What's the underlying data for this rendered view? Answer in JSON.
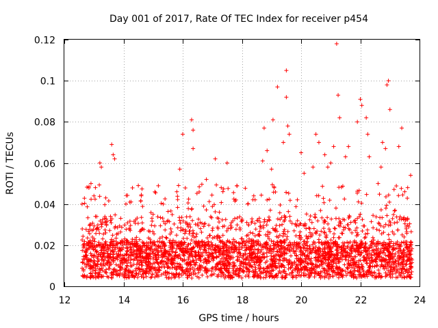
{
  "chart_data": {
    "type": "scatter",
    "title": "Day 001 of 2017, Rate Of TEC Index for receiver p454",
    "xlabel": "GPS time / hours",
    "ylabel": "ROTI / TECUs",
    "xlim": [
      12,
      24
    ],
    "ylim": [
      0,
      0.12
    ],
    "x_ticks": [
      12,
      14,
      16,
      18,
      20,
      22,
      24
    ],
    "x_tick_labels": [
      "12",
      "14",
      "16",
      "18",
      "20",
      "22",
      "24"
    ],
    "y_ticks": [
      0,
      0.02,
      0.04,
      0.06,
      0.08,
      0.1,
      0.12
    ],
    "y_tick_labels": [
      "0",
      "0.02",
      "0.04",
      "0.06",
      "0.08",
      "0.1",
      "0.12"
    ],
    "grid": true,
    "marker": "+",
    "color": "#ff0000",
    "series": [
      {
        "name": "ROTI",
        "x": [
          12.6,
          12.9,
          13.0,
          13.05,
          13.2,
          13.25,
          13.4,
          13.6,
          13.65,
          13.7,
          14.5,
          14.6,
          15.0,
          15.5,
          15.8,
          15.9,
          16.0,
          16.3,
          16.35,
          16.35,
          16.8,
          17.1,
          17.3,
          17.5,
          17.8,
          18.2,
          18.4,
          18.7,
          18.75,
          18.85,
          19.0,
          19.05,
          19.2,
          19.4,
          19.5,
          19.5,
          19.55,
          19.6,
          20.0,
          20.1,
          20.4,
          20.5,
          20.6,
          20.8,
          20.9,
          21.0,
          21.1,
          21.2,
          21.25,
          21.3,
          21.5,
          21.6,
          21.9,
          22.0,
          22.05,
          22.2,
          22.25,
          22.3,
          22.6,
          22.7,
          22.75,
          22.85,
          22.9,
          22.95,
          23.0,
          23.3,
          23.4,
          23.5,
          23.6,
          23.7
        ],
        "y": [
          0.04,
          0.05,
          0.044,
          0.048,
          0.06,
          0.058,
          0.043,
          0.069,
          0.064,
          0.062,
          0.049,
          0.044,
          0.035,
          0.032,
          0.046,
          0.057,
          0.074,
          0.081,
          0.076,
          0.067,
          0.052,
          0.062,
          0.048,
          0.06,
          0.042,
          0.04,
          0.044,
          0.061,
          0.077,
          0.066,
          0.057,
          0.081,
          0.097,
          0.07,
          0.105,
          0.092,
          0.078,
          0.074,
          0.065,
          0.055,
          0.058,
          0.074,
          0.07,
          0.064,
          0.058,
          0.06,
          0.068,
          0.118,
          0.093,
          0.082,
          0.063,
          0.068,
          0.08,
          0.091,
          0.088,
          0.082,
          0.074,
          0.063,
          0.05,
          0.058,
          0.07,
          0.067,
          0.098,
          0.1,
          0.086,
          0.068,
          0.077,
          0.046,
          0.048,
          0.054
        ]
      }
    ]
  }
}
